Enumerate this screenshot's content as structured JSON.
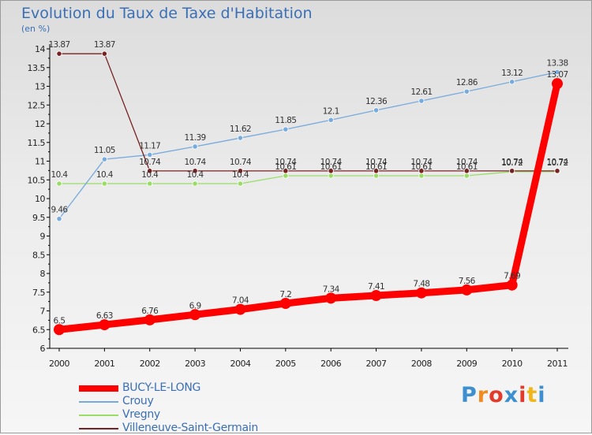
{
  "chart_data": {
    "type": "line",
    "title": "Evolution du Taux de Taxe d'Habitation",
    "subtitle": "(en %)",
    "categories": [
      "2000",
      "2001",
      "2002",
      "2003",
      "2004",
      "2005",
      "2006",
      "2007",
      "2008",
      "2009",
      "2010",
      "2011"
    ],
    "ylim": [
      6,
      14
    ],
    "yticks": [
      "6",
      "6.5",
      "7",
      "7.5",
      "8",
      "8.5",
      "9",
      "9.5",
      "10",
      "10.5",
      "11",
      "11.5",
      "12",
      "12.5",
      "13",
      "13.5",
      "14"
    ],
    "grid": false,
    "legend_position": "bottom-left",
    "series": [
      {
        "name": "BUCY-LE-LONG",
        "color": "#ff0000",
        "values": [
          6.5,
          6.63,
          6.76,
          6.9,
          7.04,
          7.2,
          7.34,
          7.41,
          7.48,
          7.56,
          7.69,
          13.07
        ],
        "labels": [
          "6.5",
          "6.63",
          "6.76",
          "6.9",
          "7.04",
          "7.2",
          "7.34",
          "7.41",
          "7.48",
          "7.56",
          "7.69",
          "13.07"
        ]
      },
      {
        "name": "Crouy",
        "color": "#77aadd",
        "values": [
          9.46,
          11.05,
          11.17,
          11.39,
          11.62,
          11.85,
          12.1,
          12.36,
          12.61,
          12.86,
          13.12,
          13.38
        ],
        "labels": [
          "9.46",
          "11.05",
          "11.17",
          "11.39",
          "11.62",
          "11.85",
          "12.1",
          "12.36",
          "12.61",
          "12.86",
          "13.12",
          "13.38"
        ]
      },
      {
        "name": "Vregny",
        "color": "#99dd66",
        "values": [
          10.4,
          10.4,
          10.4,
          10.4,
          10.4,
          10.61,
          10.61,
          10.61,
          10.61,
          10.61,
          10.72,
          10.72
        ],
        "labels": [
          "10.4",
          "10.4",
          "10.4",
          "10.4",
          "10.4",
          "10.61",
          "10.61",
          "10.61",
          "10.61",
          "10.61",
          "10.72",
          "10.72"
        ]
      },
      {
        "name": "Villeneuve-Saint-Germain",
        "color": "#772222",
        "values": [
          13.87,
          13.87,
          10.74,
          10.74,
          10.74,
          10.74,
          10.74,
          10.74,
          10.74,
          10.74,
          10.74,
          10.74
        ],
        "labels": [
          "13.87",
          "13.87",
          "10.74",
          "10.74",
          "10.74",
          "10.74",
          "10.74",
          "10.74",
          "10.74",
          "10.74",
          "10.74",
          "10.74"
        ]
      }
    ]
  },
  "logo": {
    "letters": [
      "P",
      "r",
      "o",
      "x",
      "i",
      "t",
      "i"
    ],
    "colors": [
      "#3d8fd0",
      "#f28a1e",
      "#e23a2b",
      "#3d8fd0",
      "#e23a2b",
      "#f0b61a",
      "#3d8fd0"
    ]
  },
  "colors": {
    "title": "#3b6fb5",
    "axis": "#000000"
  }
}
